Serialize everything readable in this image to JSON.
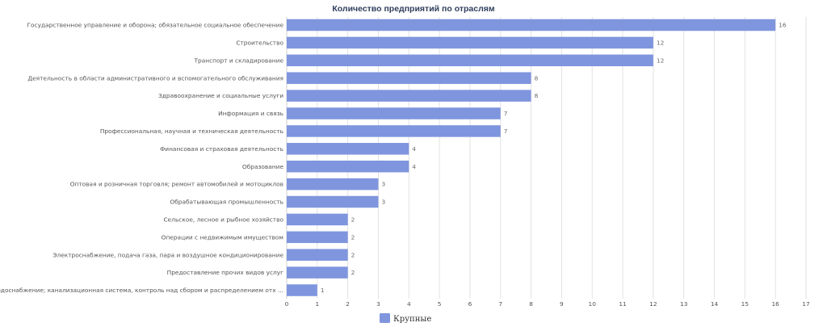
{
  "chart_data": {
    "type": "bar",
    "orientation": "horizontal",
    "title": "Количество предприятий по отраслям",
    "categories": [
      "Государственное управление и оборона; обязательное социальное обеспечение",
      "Строительство",
      "Транспорт и складирование",
      "Деятельность в области административного и вспомогательного обслуживания",
      "Здравоохранение и социальные услуги",
      "Информация и связь",
      "Профессиональная, научная и техническая деятельность",
      "Финансовая и страховая деятельность",
      "Образование",
      "Оптовая и розничная торговля; ремонт автомобилей и мотоциклов",
      "Обрабатывающая промышленность",
      "Сельское, лесное и рыбное хозяйство",
      "Операции с недвижимым имуществом",
      "Электроснабжение, подача газа, пара и воздушное кондиционирование",
      "Предоставление прочих видов услуг",
      "Водоснабжение; канализационная система, контроль над сбором и распределением отх ..."
    ],
    "series": [
      {
        "name": "Крупные",
        "values": [
          16,
          12,
          12,
          8,
          8,
          7,
          7,
          4,
          4,
          3,
          3,
          2,
          2,
          2,
          2,
          1
        ],
        "color": "#7f95de"
      }
    ],
    "xlim": [
      0,
      17
    ],
    "xticks": [
      "0",
      "1",
      "2",
      "3",
      "4",
      "5",
      "6",
      "7",
      "8",
      "9",
      "10",
      "11",
      "12",
      "13",
      "14",
      "15",
      "16",
      "17"
    ],
    "grid": "vertical",
    "legend": "bottom-center",
    "colors": {
      "bar": "#7f95de",
      "grid": "#e2e2e2",
      "title": "#2f3e5c"
    }
  }
}
